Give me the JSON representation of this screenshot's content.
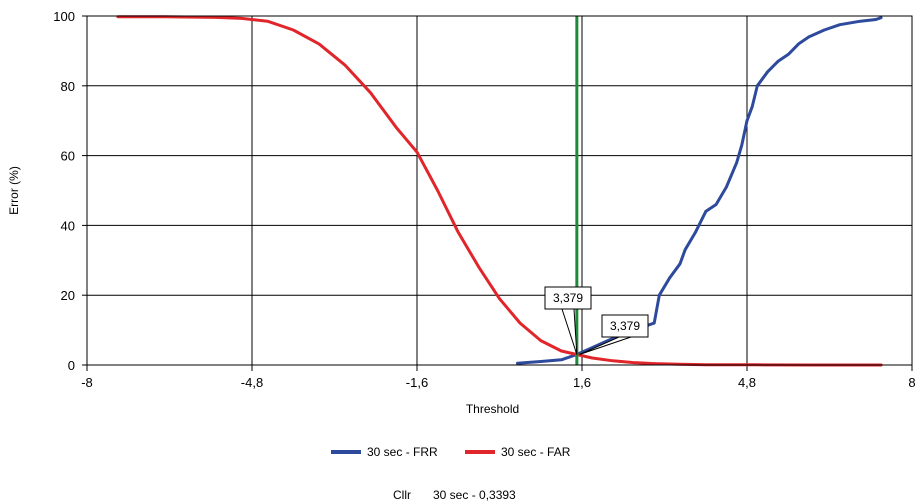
{
  "chart_data": {
    "type": "line",
    "xlabel": "Threshold",
    "ylabel": "Error (%)",
    "xlim": [
      -8,
      8
    ],
    "ylim": [
      0,
      100
    ],
    "x_ticks": [
      -8,
      -4.8,
      -1.6,
      1.6,
      4.8,
      8
    ],
    "x_tick_labels": [
      "-8",
      "-4,8",
      "-1,6",
      "1,6",
      "4,8",
      "8"
    ],
    "y_ticks": [
      0,
      20,
      40,
      60,
      80,
      100
    ],
    "y_tick_labels": [
      "0",
      "20",
      "40",
      "60",
      "80",
      "100"
    ],
    "grid": true,
    "legend_position": "bottom",
    "series": [
      {
        "name": "30 sec - FRR",
        "color": "#2e4a9c",
        "x": [
          0.35,
          0.8,
          1.2,
          1.5,
          1.8,
          2.1,
          2.5,
          2.8,
          3.0,
          3.1,
          3.3,
          3.5,
          3.6,
          3.8,
          4.0,
          4.2,
          4.4,
          4.6,
          4.7,
          4.8,
          4.9,
          5.0,
          5.2,
          5.4,
          5.6,
          5.8,
          6.0,
          6.3,
          6.6,
          7.0,
          7.3,
          7.4
        ],
        "y": [
          0.5,
          1.0,
          1.5,
          3.0,
          5.0,
          7.0,
          9.5,
          11.0,
          12.0,
          20.0,
          25.0,
          29.0,
          33.0,
          38.0,
          44.0,
          46.0,
          51.0,
          58.0,
          63.0,
          70.0,
          74.0,
          80.0,
          84.0,
          87.0,
          89.0,
          92.0,
          94.0,
          96.0,
          97.5,
          98.5,
          99.0,
          99.5
        ]
      },
      {
        "name": "30 sec - FAR",
        "color": "#e0262b",
        "x": [
          -7.4,
          -6.5,
          -5.5,
          -5.0,
          -4.5,
          -4.0,
          -3.5,
          -3.0,
          -2.5,
          -2.0,
          -1.6,
          -1.2,
          -0.8,
          -0.4,
          0.0,
          0.4,
          0.8,
          1.2,
          1.5,
          1.8,
          2.2,
          2.6,
          3.0,
          3.5,
          4.0,
          5.0,
          6.0,
          7.4
        ],
        "y": [
          99.8,
          99.8,
          99.6,
          99.3,
          98.5,
          96.0,
          92.0,
          86.0,
          78.0,
          68.0,
          61.0,
          50.0,
          38.0,
          28.0,
          19.0,
          12.0,
          7.0,
          4.0,
          3.0,
          2.0,
          1.2,
          0.7,
          0.4,
          0.2,
          0.1,
          0.05,
          0.0,
          0.0
        ]
      }
    ],
    "threshold_line": {
      "x": 1.5,
      "color": "#1e8a3a"
    },
    "callouts": [
      {
        "label": "3,379",
        "x": 1.5,
        "y": 3.0
      },
      {
        "label": "3,379",
        "x": 1.55,
        "y": 3.0
      }
    ],
    "footer": {
      "prefix": "Cllr",
      "value": "30 sec - 0,3393"
    }
  }
}
